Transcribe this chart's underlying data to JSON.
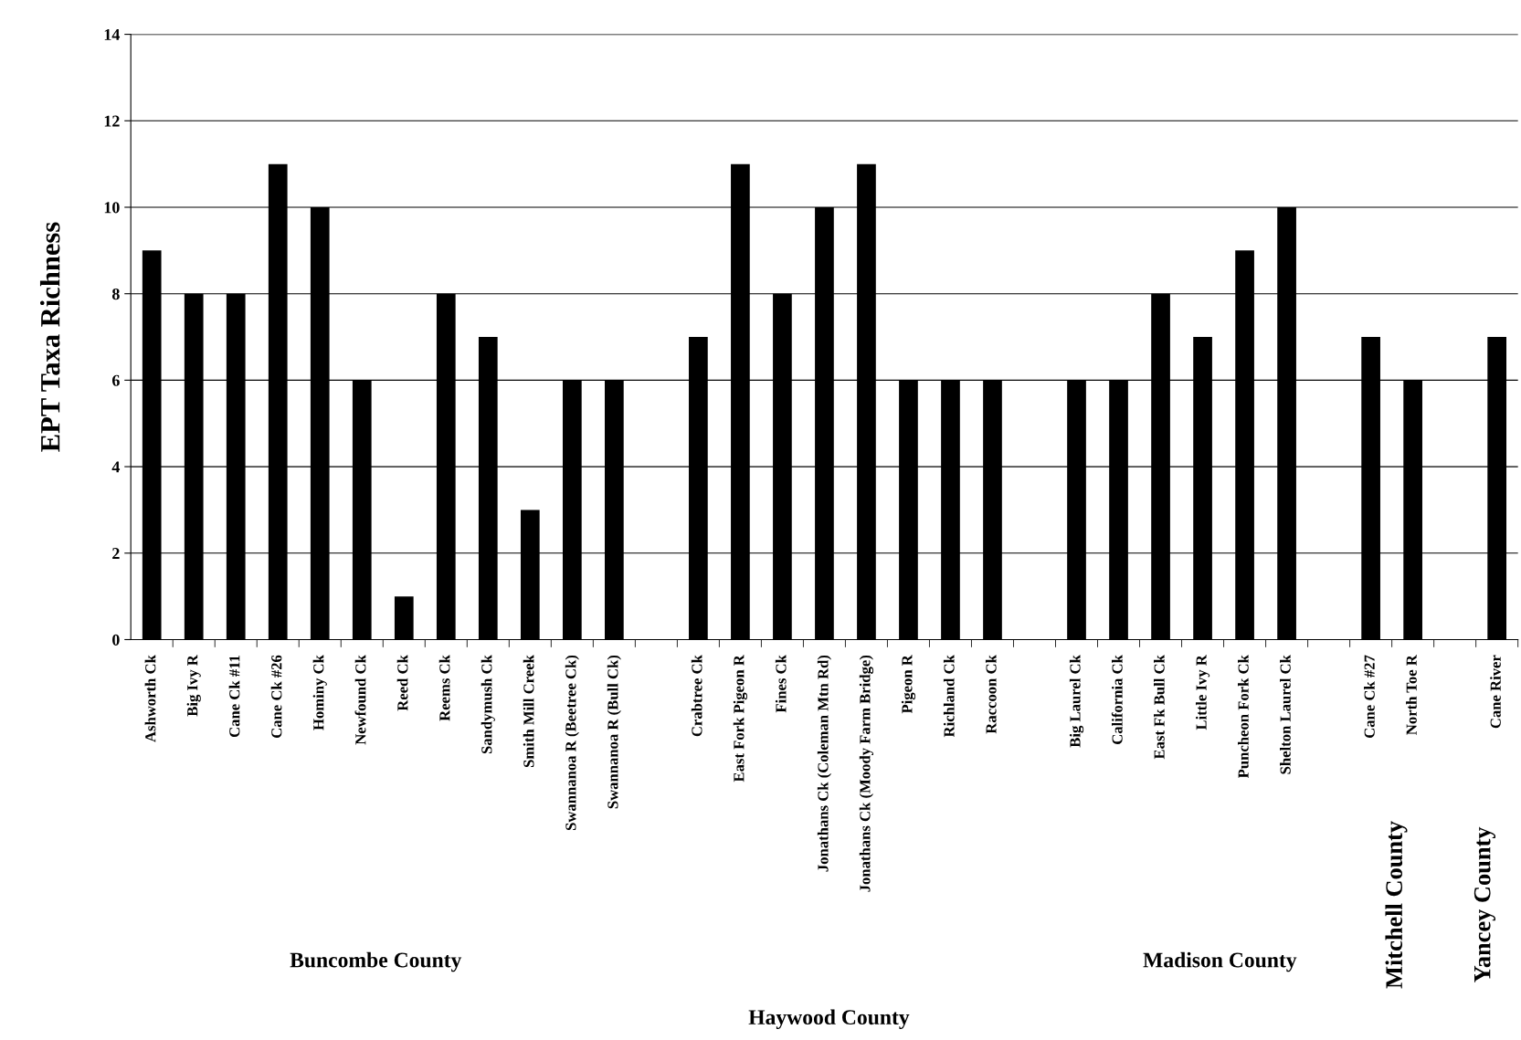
{
  "chart_data": {
    "type": "bar",
    "ylabel": "EPT Taxa Richness",
    "categories": [
      "Ashworth Ck",
      "Big Ivy R",
      "Cane Ck #11",
      "Cane Ck #26",
      "Hominy Ck",
      "Newfound Ck",
      "Reed Ck",
      "Reems Ck",
      "Sandymush Ck",
      "Smith Mill Creek",
      "Swannanoa R (Beetree Ck)",
      "Swannanoa R (Bull Ck)",
      null,
      "Crabtree Ck",
      "East Fork Pigeon R",
      "Fines Ck",
      "Jonathans Ck (Coleman Mtn Rd)",
      "Jonathans Ck (Moody Farm Bridge)",
      "Pigeon R",
      "Richland Ck",
      "Raccoon Ck",
      null,
      "Big Laurel Ck",
      "California Ck",
      "East Fk Bull Ck",
      "Little Ivy R",
      "Puncheon Fork Ck",
      "Shelton Laurel Ck",
      null,
      "Cane Ck #27",
      "North Toe R",
      null,
      "Cane River"
    ],
    "values": [
      9,
      8,
      8,
      11,
      10,
      6,
      1,
      8,
      7,
      3,
      6,
      6,
      null,
      7,
      11,
      8,
      10,
      11,
      6,
      6,
      6,
      null,
      6,
      6,
      8,
      7,
      9,
      10,
      null,
      7,
      6,
      null,
      7
    ],
    "color": "#000000",
    "ylim": [
      0,
      14
    ],
    "yticks": [
      0,
      2,
      4,
      6,
      8,
      10,
      12,
      14
    ],
    "grid": "y",
    "annotations": [
      "Buncombe County",
      "Haywood County",
      "Madison County",
      "Mitchell County",
      "Yancey County"
    ]
  }
}
